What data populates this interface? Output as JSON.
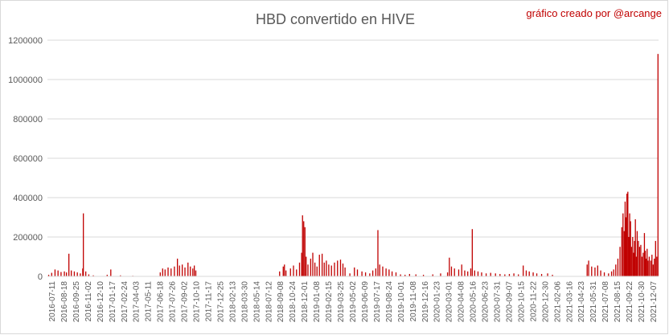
{
  "chart_data": {
    "type": "bar",
    "title": "HBD convertido en HIVE",
    "credit": "gráfico creado por @arcange",
    "xlabel": "",
    "ylabel": "",
    "ylim": [
      0,
      1200000
    ],
    "yticks": [
      "0",
      "200000",
      "400000",
      "600000",
      "800000",
      "1000000",
      "1200000"
    ],
    "ytick_values": [
      0,
      200000,
      400000,
      600000,
      800000,
      1000000,
      1200000
    ],
    "grid": true,
    "legend": "none",
    "bar_color": "#c00000",
    "credit_color": "#c00000",
    "x_start": "2016-07-11",
    "x_end": "2022-01-28",
    "x_ticks": [
      "2016-07-11",
      "2016-08-18",
      "2016-09-25",
      "2016-11-02",
      "2016-12-10",
      "2017-01-17",
      "2017-02-24",
      "2017-04-03",
      "2017-05-11",
      "2017-06-18",
      "2017-07-26",
      "2017-09-02",
      "2017-10-10",
      "2017-11-17",
      "2017-12-25",
      "2018-02-13",
      "2018-03-30",
      "2018-05-14",
      "2018-07-12",
      "2018-09-08",
      "2018-10-24",
      "2018-12-01",
      "2019-01-08",
      "2019-02-15",
      "2019-03-25",
      "2019-05-02",
      "2019-06-09",
      "2019-07-17",
      "2019-08-24",
      "2019-10-01",
      "2019-11-08",
      "2019-12-16",
      "2020-01-23",
      "2020-03-01",
      "2020-04-08",
      "2020-05-16",
      "2020-06-23",
      "2020-07-31",
      "2020-09-07",
      "2020-10-15",
      "2020-11-22",
      "2020-12-30",
      "2021-02-06",
      "2021-03-16",
      "2021-04-23",
      "2021-05-31",
      "2021-07-08",
      "2021-08-15",
      "2021-09-22",
      "2021-10-30",
      "2021-12-07"
    ],
    "series": [
      {
        "values": [
          [
            "2016-07-15",
            8000
          ],
          [
            "2016-07-25",
            18000
          ],
          [
            "2016-08-05",
            35000
          ],
          [
            "2016-08-15",
            30000
          ],
          [
            "2016-08-25",
            22000
          ],
          [
            "2016-09-05",
            25000
          ],
          [
            "2016-09-12",
            20000
          ],
          [
            "2016-09-20",
            115000
          ],
          [
            "2016-09-28",
            30000
          ],
          [
            "2016-10-08",
            25000
          ],
          [
            "2016-10-18",
            20000
          ],
          [
            "2016-10-28",
            15000
          ],
          [
            "2016-11-05",
            40000
          ],
          [
            "2016-11-07",
            320000
          ],
          [
            "2016-11-15",
            25000
          ],
          [
            "2016-11-25",
            10000
          ],
          [
            "2016-12-10",
            5000
          ],
          [
            "2017-01-25",
            8000
          ],
          [
            "2017-02-06",
            35000
          ],
          [
            "2017-03-10",
            5000
          ],
          [
            "2017-04-20",
            3000
          ],
          [
            "2017-07-20",
            20000
          ],
          [
            "2017-07-28",
            40000
          ],
          [
            "2017-08-05",
            35000
          ],
          [
            "2017-08-15",
            45000
          ],
          [
            "2017-08-25",
            40000
          ],
          [
            "2017-09-05",
            50000
          ],
          [
            "2017-09-15",
            90000
          ],
          [
            "2017-09-22",
            55000
          ],
          [
            "2017-10-01",
            60000
          ],
          [
            "2017-10-10",
            45000
          ],
          [
            "2017-10-20",
            70000
          ],
          [
            "2017-10-28",
            50000
          ],
          [
            "2017-11-05",
            40000
          ],
          [
            "2017-11-10",
            55000
          ],
          [
            "2017-11-15",
            30000
          ],
          [
            "2018-08-20",
            25000
          ],
          [
            "2018-09-01",
            50000
          ],
          [
            "2018-09-05",
            60000
          ],
          [
            "2018-09-10",
            30000
          ],
          [
            "2018-09-25",
            40000
          ],
          [
            "2018-10-05",
            55000
          ],
          [
            "2018-10-15",
            35000
          ],
          [
            "2018-10-25",
            70000
          ],
          [
            "2018-11-01",
            120000
          ],
          [
            "2018-11-04",
            310000
          ],
          [
            "2018-11-08",
            280000
          ],
          [
            "2018-11-12",
            250000
          ],
          [
            "2018-11-16",
            100000
          ],
          [
            "2018-11-22",
            60000
          ],
          [
            "2018-12-01",
            90000
          ],
          [
            "2018-12-08",
            120000
          ],
          [
            "2018-12-15",
            70000
          ],
          [
            "2018-12-22",
            50000
          ],
          [
            "2018-12-30",
            110000
          ],
          [
            "2019-01-08",
            115000
          ],
          [
            "2019-01-15",
            70000
          ],
          [
            "2019-01-22",
            80000
          ],
          [
            "2019-01-30",
            60000
          ],
          [
            "2019-02-08",
            55000
          ],
          [
            "2019-02-18",
            70000
          ],
          [
            "2019-02-28",
            80000
          ],
          [
            "2019-03-10",
            85000
          ],
          [
            "2019-03-18",
            65000
          ],
          [
            "2019-03-25",
            45000
          ],
          [
            "2019-04-10",
            15000
          ],
          [
            "2019-04-25",
            45000
          ],
          [
            "2019-05-05",
            35000
          ],
          [
            "2019-05-20",
            25000
          ],
          [
            "2019-06-01",
            20000
          ],
          [
            "2019-06-15",
            15000
          ],
          [
            "2019-06-25",
            30000
          ],
          [
            "2019-07-05",
            40000
          ],
          [
            "2019-07-12",
            235000
          ],
          [
            "2019-07-18",
            60000
          ],
          [
            "2019-07-28",
            50000
          ],
          [
            "2019-08-08",
            40000
          ],
          [
            "2019-08-18",
            35000
          ],
          [
            "2019-08-28",
            25000
          ],
          [
            "2019-09-10",
            20000
          ],
          [
            "2019-09-25",
            10000
          ],
          [
            "2019-10-10",
            8000
          ],
          [
            "2019-10-25",
            12000
          ],
          [
            "2019-11-15",
            10000
          ],
          [
            "2019-12-10",
            8000
          ],
          [
            "2020-01-10",
            10000
          ],
          [
            "2020-02-05",
            15000
          ],
          [
            "2020-02-28",
            20000
          ],
          [
            "2020-03-05",
            95000
          ],
          [
            "2020-03-12",
            50000
          ],
          [
            "2020-03-22",
            40000
          ],
          [
            "2020-04-05",
            35000
          ],
          [
            "2020-04-15",
            60000
          ],
          [
            "2020-04-25",
            30000
          ],
          [
            "2020-05-05",
            25000
          ],
          [
            "2020-05-15",
            40000
          ],
          [
            "2020-05-20",
            240000
          ],
          [
            "2020-05-28",
            30000
          ],
          [
            "2020-06-08",
            25000
          ],
          [
            "2020-06-20",
            20000
          ],
          [
            "2020-07-05",
            15000
          ],
          [
            "2020-07-20",
            18000
          ],
          [
            "2020-08-05",
            15000
          ],
          [
            "2020-08-20",
            12000
          ],
          [
            "2020-09-05",
            10000
          ],
          [
            "2020-09-20",
            12000
          ],
          [
            "2020-10-05",
            15000
          ],
          [
            "2020-10-20",
            10000
          ],
          [
            "2020-11-05",
            55000
          ],
          [
            "2020-11-15",
            30000
          ],
          [
            "2020-11-25",
            25000
          ],
          [
            "2020-12-08",
            20000
          ],
          [
            "2020-12-20",
            15000
          ],
          [
            "2021-01-05",
            12000
          ],
          [
            "2021-01-25",
            15000
          ],
          [
            "2021-02-10",
            8000
          ],
          [
            "2021-06-05",
            60000
          ],
          [
            "2021-06-10",
            80000
          ],
          [
            "2021-06-20",
            50000
          ],
          [
            "2021-07-01",
            45000
          ],
          [
            "2021-07-10",
            55000
          ],
          [
            "2021-07-20",
            30000
          ],
          [
            "2021-08-01",
            20000
          ],
          [
            "2021-08-15",
            15000
          ],
          [
            "2021-08-25",
            25000
          ],
          [
            "2021-09-01",
            35000
          ],
          [
            "2021-09-08",
            60000
          ],
          [
            "2021-09-15",
            90000
          ],
          [
            "2021-09-22",
            150000
          ],
          [
            "2021-09-28",
            250000
          ],
          [
            "2021-10-02",
            320000
          ],
          [
            "2021-10-06",
            230000
          ],
          [
            "2021-10-09",
            380000
          ],
          [
            "2021-10-12",
            300000
          ],
          [
            "2021-10-15",
            420000
          ],
          [
            "2021-10-18",
            430000
          ],
          [
            "2021-10-21",
            200000
          ],
          [
            "2021-10-24",
            320000
          ],
          [
            "2021-10-27",
            280000
          ],
          [
            "2021-10-30",
            150000
          ],
          [
            "2021-11-03",
            200000
          ],
          [
            "2021-11-06",
            120000
          ],
          [
            "2021-11-09",
            180000
          ],
          [
            "2021-11-12",
            290000
          ],
          [
            "2021-11-15",
            100000
          ],
          [
            "2021-11-18",
            230000
          ],
          [
            "2021-11-22",
            180000
          ],
          [
            "2021-11-26",
            150000
          ],
          [
            "2021-11-30",
            160000
          ],
          [
            "2021-12-04",
            100000
          ],
          [
            "2021-12-08",
            120000
          ],
          [
            "2021-12-12",
            220000
          ],
          [
            "2021-12-15",
            130000
          ],
          [
            "2021-12-18",
            90000
          ],
          [
            "2021-12-21",
            140000
          ],
          [
            "2021-12-24",
            80000
          ],
          [
            "2021-12-28",
            100000
          ],
          [
            "2022-01-02",
            80000
          ],
          [
            "2022-01-06",
            110000
          ],
          [
            "2022-01-10",
            60000
          ],
          [
            "2022-01-14",
            90000
          ],
          [
            "2022-01-18",
            180000
          ],
          [
            "2022-01-22",
            100000
          ],
          [
            "2022-01-26",
            1130000
          ]
        ]
      }
    ]
  }
}
